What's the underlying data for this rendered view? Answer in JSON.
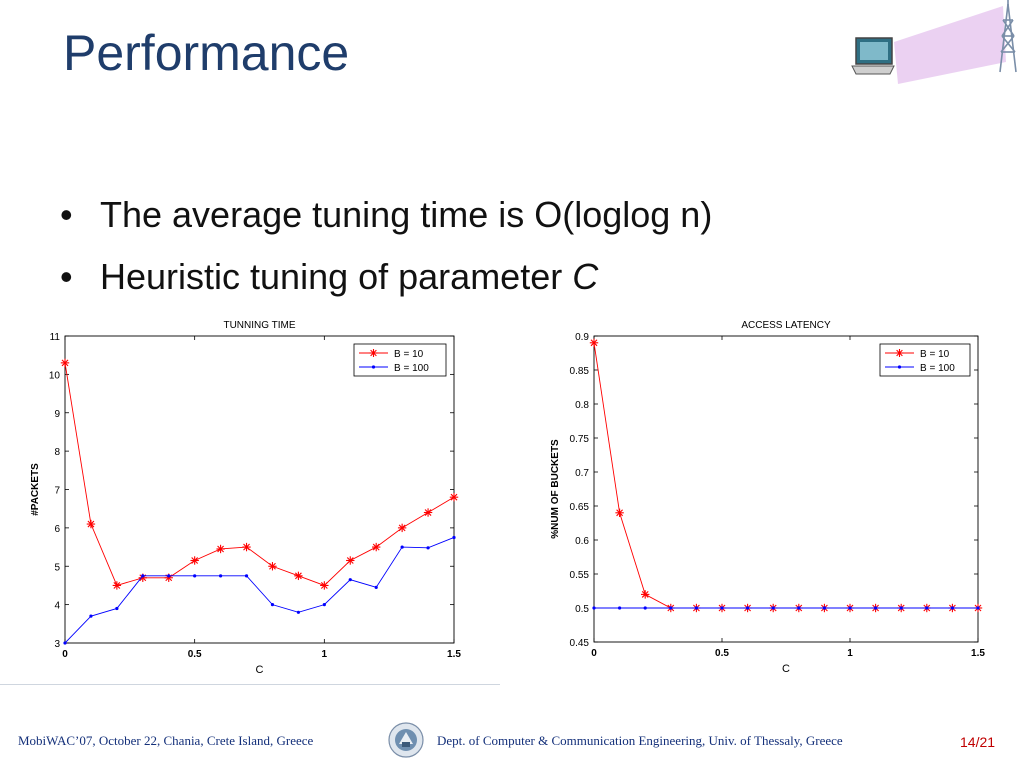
{
  "slide": {
    "title": "Performance",
    "bullets": [
      {
        "text": "The average tuning time is O(loglog n)"
      },
      {
        "text": "Heuristic tuning of parameter ",
        "italic": "C"
      }
    ]
  },
  "colors": {
    "title": "#1f3d6b",
    "series_red": "#ff0000",
    "series_blue": "#0000ff",
    "footer": "#14307a",
    "page_num": "#c00000"
  },
  "icons": [
    "laptop-icon",
    "antenna-tower-icon",
    "university-seal-icon"
  ],
  "chart_data": [
    {
      "type": "line",
      "title": "TUNNING TIME",
      "xlabel": "C",
      "ylabel": "#PACKETS",
      "xlim": [
        0,
        1.5
      ],
      "ylim": [
        3,
        11
      ],
      "xticks": [
        0,
        0.5,
        1,
        1.5
      ],
      "xtick_labels": [
        "0",
        "0.5",
        "1",
        "1.5"
      ],
      "yticks": [
        3,
        4,
        5,
        6,
        7,
        8,
        9,
        10,
        11
      ],
      "ytick_labels": [
        "3",
        "4",
        "5",
        "6",
        "7",
        "8",
        "9",
        "10",
        "11"
      ],
      "legend_position": "top-right",
      "x": [
        0,
        0.1,
        0.2,
        0.3,
        0.4,
        0.5,
        0.6,
        0.7,
        0.8,
        0.9,
        1.0,
        1.1,
        1.2,
        1.3,
        1.4,
        1.5
      ],
      "series": [
        {
          "name": "B = 10",
          "marker": "star",
          "values": [
            10.3,
            6.1,
            4.5,
            4.7,
            4.7,
            5.15,
            5.45,
            5.5,
            5.0,
            4.75,
            4.5,
            5.15,
            5.5,
            6.0,
            6.4,
            6.8
          ]
        },
        {
          "name": "B = 100",
          "marker": "dot",
          "values": [
            3.0,
            3.7,
            3.9,
            4.75,
            4.75,
            4.75,
            4.75,
            4.75,
            4.0,
            3.8,
            4.0,
            4.65,
            4.45,
            5.5,
            5.48,
            5.75
          ]
        }
      ]
    },
    {
      "type": "line",
      "title": "ACCESS LATENCY",
      "xlabel": "C",
      "ylabel": "%NUM OF BUCKETS",
      "xlim": [
        0,
        1.5
      ],
      "ylim": [
        0.45,
        0.9
      ],
      "xticks": [
        0,
        0.5,
        1,
        1.5
      ],
      "xtick_labels": [
        "0",
        "0.5",
        "1",
        "1.5"
      ],
      "yticks": [
        0.45,
        0.5,
        0.55,
        0.6,
        0.65,
        0.7,
        0.75,
        0.8,
        0.85,
        0.9
      ],
      "ytick_labels": [
        "0.45",
        "0.5",
        "0.55",
        "0.6",
        "0.65",
        "0.7",
        "0.75",
        "0.8",
        "0.85",
        "0.9"
      ],
      "legend_position": "top-right",
      "x": [
        0,
        0.1,
        0.2,
        0.3,
        0.4,
        0.5,
        0.6,
        0.7,
        0.8,
        0.9,
        1.0,
        1.1,
        1.2,
        1.3,
        1.4,
        1.5
      ],
      "series": [
        {
          "name": "B = 10",
          "marker": "star",
          "values": [
            0.89,
            0.64,
            0.52,
            0.5,
            0.5,
            0.5,
            0.5,
            0.5,
            0.5,
            0.5,
            0.5,
            0.5,
            0.5,
            0.5,
            0.5,
            0.5
          ]
        },
        {
          "name": "B = 100",
          "marker": "dot",
          "values": [
            0.5,
            0.5,
            0.5,
            0.5,
            0.5,
            0.5,
            0.5,
            0.5,
            0.5,
            0.5,
            0.5,
            0.5,
            0.5,
            0.5,
            0.5,
            0.5
          ]
        }
      ]
    }
  ],
  "footer": {
    "left": "MobiWAC’07, October 22, Chania, Crete Island, Greece",
    "dept": "Dept. of Computer & Communication Engineering, Univ. of Thessaly, Greece",
    "page": "14/21"
  }
}
